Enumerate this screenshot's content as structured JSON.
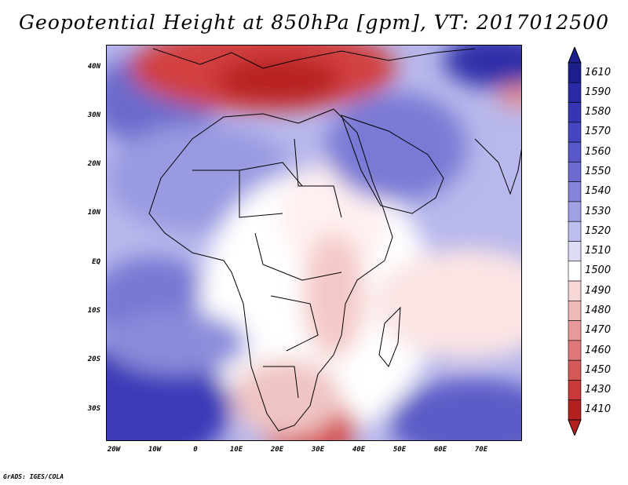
{
  "title": "Geopotential Height at 850hPa [gpm], VT: 2017012500",
  "footer": "GrADS: IGES/COLA",
  "lat_ticks": [
    "40N",
    "30N",
    "20N",
    "10N",
    "EQ",
    "10S",
    "20S",
    "30S"
  ],
  "lon_ticks": [
    "20W",
    "10W",
    "0",
    "10E",
    "20E",
    "30E",
    "40E",
    "50E",
    "60E",
    "70E"
  ],
  "legend": {
    "labels": [
      "1610",
      "1590",
      "1580",
      "1570",
      "1560",
      "1550",
      "1540",
      "1530",
      "1520",
      "1510",
      "1500",
      "1490",
      "1480",
      "1470",
      "1460",
      "1450",
      "1430",
      "1410"
    ],
    "colors": [
      "#1e1e8c",
      "#2a2aa6",
      "#3636b4",
      "#4646c0",
      "#5858c8",
      "#6c6cd0",
      "#8484da",
      "#a0a0e4",
      "#bebeee",
      "#dcdcf6",
      "#ffffff",
      "#f7d6d6",
      "#f0baba",
      "#e89a9a",
      "#df7878",
      "#d45858",
      "#c83a3a",
      "#b42020"
    ]
  },
  "colors": {
    "map_bg": "#a9a9ea",
    "land_border": "#000000"
  }
}
